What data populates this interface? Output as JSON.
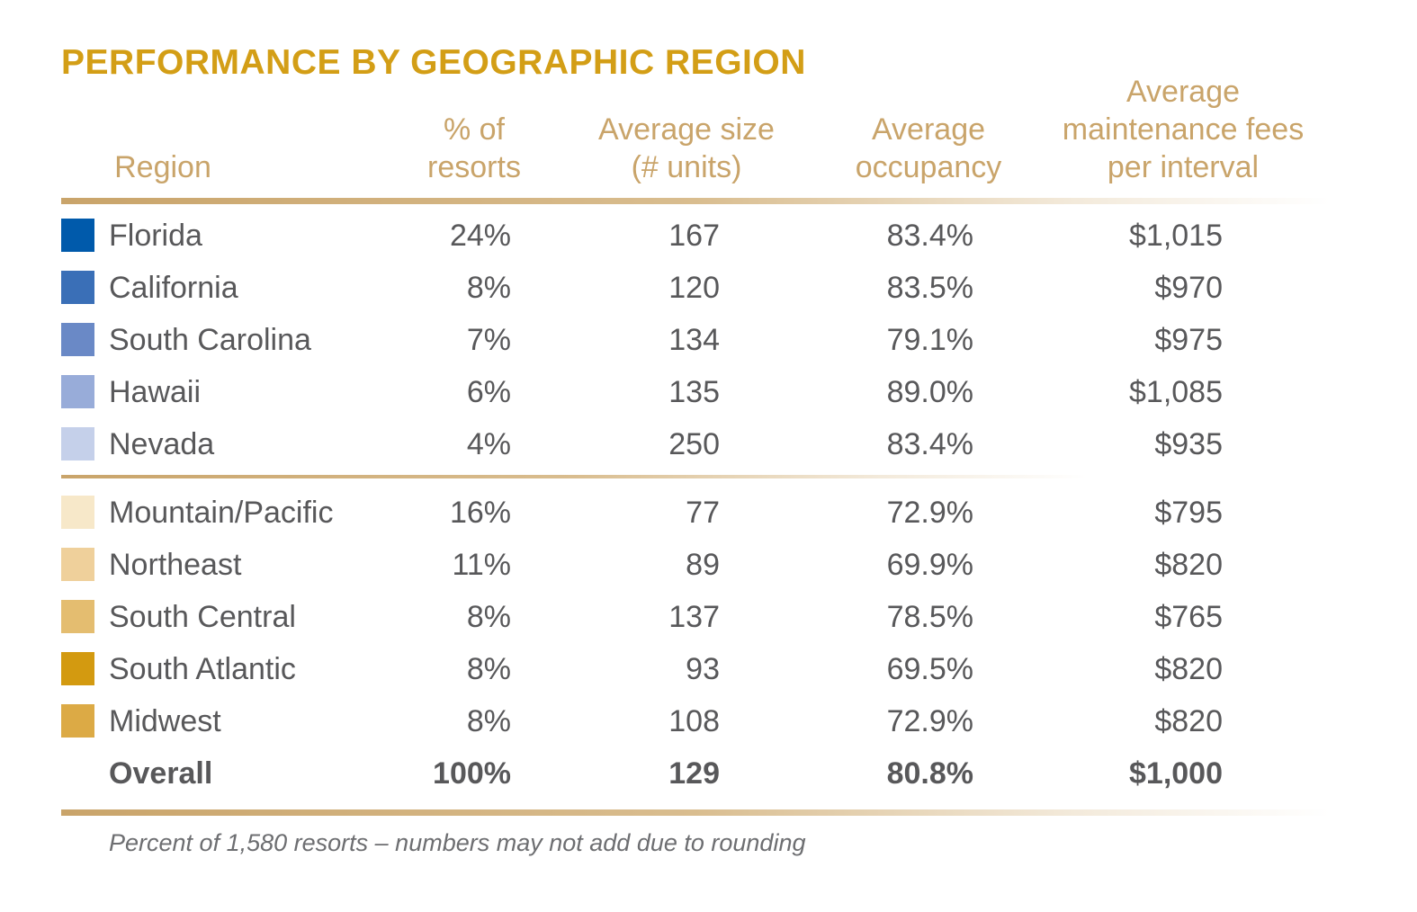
{
  "title": "PERFORMANCE BY GEOGRAPHIC REGION",
  "chart_data": {
    "type": "table",
    "title": "PERFORMANCE BY GEOGRAPHIC REGION",
    "columns": [
      "Region",
      "% of resorts",
      "Average size (# units)",
      "Average occupancy",
      "Average maintenance fees per interval"
    ],
    "header_lines": [
      [
        "Region"
      ],
      [
        "% of",
        "resorts"
      ],
      [
        "Average size",
        "(# units)"
      ],
      [
        "Average",
        "occupancy"
      ],
      [
        "Average",
        "maintenance fees",
        "per interval"
      ]
    ],
    "rows": [
      {
        "region": "Florida",
        "color": "#005aab",
        "pct": "24%",
        "size": "167",
        "occupancy": "83.4%",
        "fees": "$1,015",
        "group": 1
      },
      {
        "region": "California",
        "color": "#3a6fb7",
        "pct": "8%",
        "size": "120",
        "occupancy": "83.5%",
        "fees": "$970",
        "group": 1
      },
      {
        "region": "South Carolina",
        "color": "#6a89c6",
        "pct": "7%",
        "size": "134",
        "occupancy": "79.1%",
        "fees": "$975",
        "group": 1
      },
      {
        "region": "Hawaii",
        "color": "#98acd9",
        "pct": "6%",
        "size": "135",
        "occupancy": "89.0%",
        "fees": "$1,085",
        "group": 1
      },
      {
        "region": "Nevada",
        "color": "#c5d0ea",
        "pct": "4%",
        "size": "250",
        "occupancy": "83.4%",
        "fees": "$935",
        "group": 1
      },
      {
        "region": "Mountain/Pacific",
        "color": "#f7e8c9",
        "pct": "16%",
        "size": "77",
        "occupancy": "72.9%",
        "fees": "$795",
        "group": 2
      },
      {
        "region": "Northeast",
        "color": "#efd09b",
        "pct": "11%",
        "size": "89",
        "occupancy": "69.9%",
        "fees": "$820",
        "group": 2
      },
      {
        "region": "South Central",
        "color": "#e4bd70",
        "pct": "8%",
        "size": "137",
        "occupancy": "78.5%",
        "fees": "$765",
        "group": 2
      },
      {
        "region": "South Atlantic",
        "color": "#d39a10",
        "pct": "8%",
        "size": "93",
        "occupancy": "69.5%",
        "fees": "$820",
        "group": 2
      },
      {
        "region": "Midwest",
        "color": "#dcaa45",
        "pct": "8%",
        "size": "108",
        "occupancy": "72.9%",
        "fees": "$820",
        "group": 2
      }
    ],
    "total": {
      "region": "Overall",
      "pct": "100%",
      "size": "129",
      "occupancy": "80.8%",
      "fees": "$1,000"
    }
  },
  "footnote": "Percent of 1,580 resorts – numbers may not add due to rounding"
}
